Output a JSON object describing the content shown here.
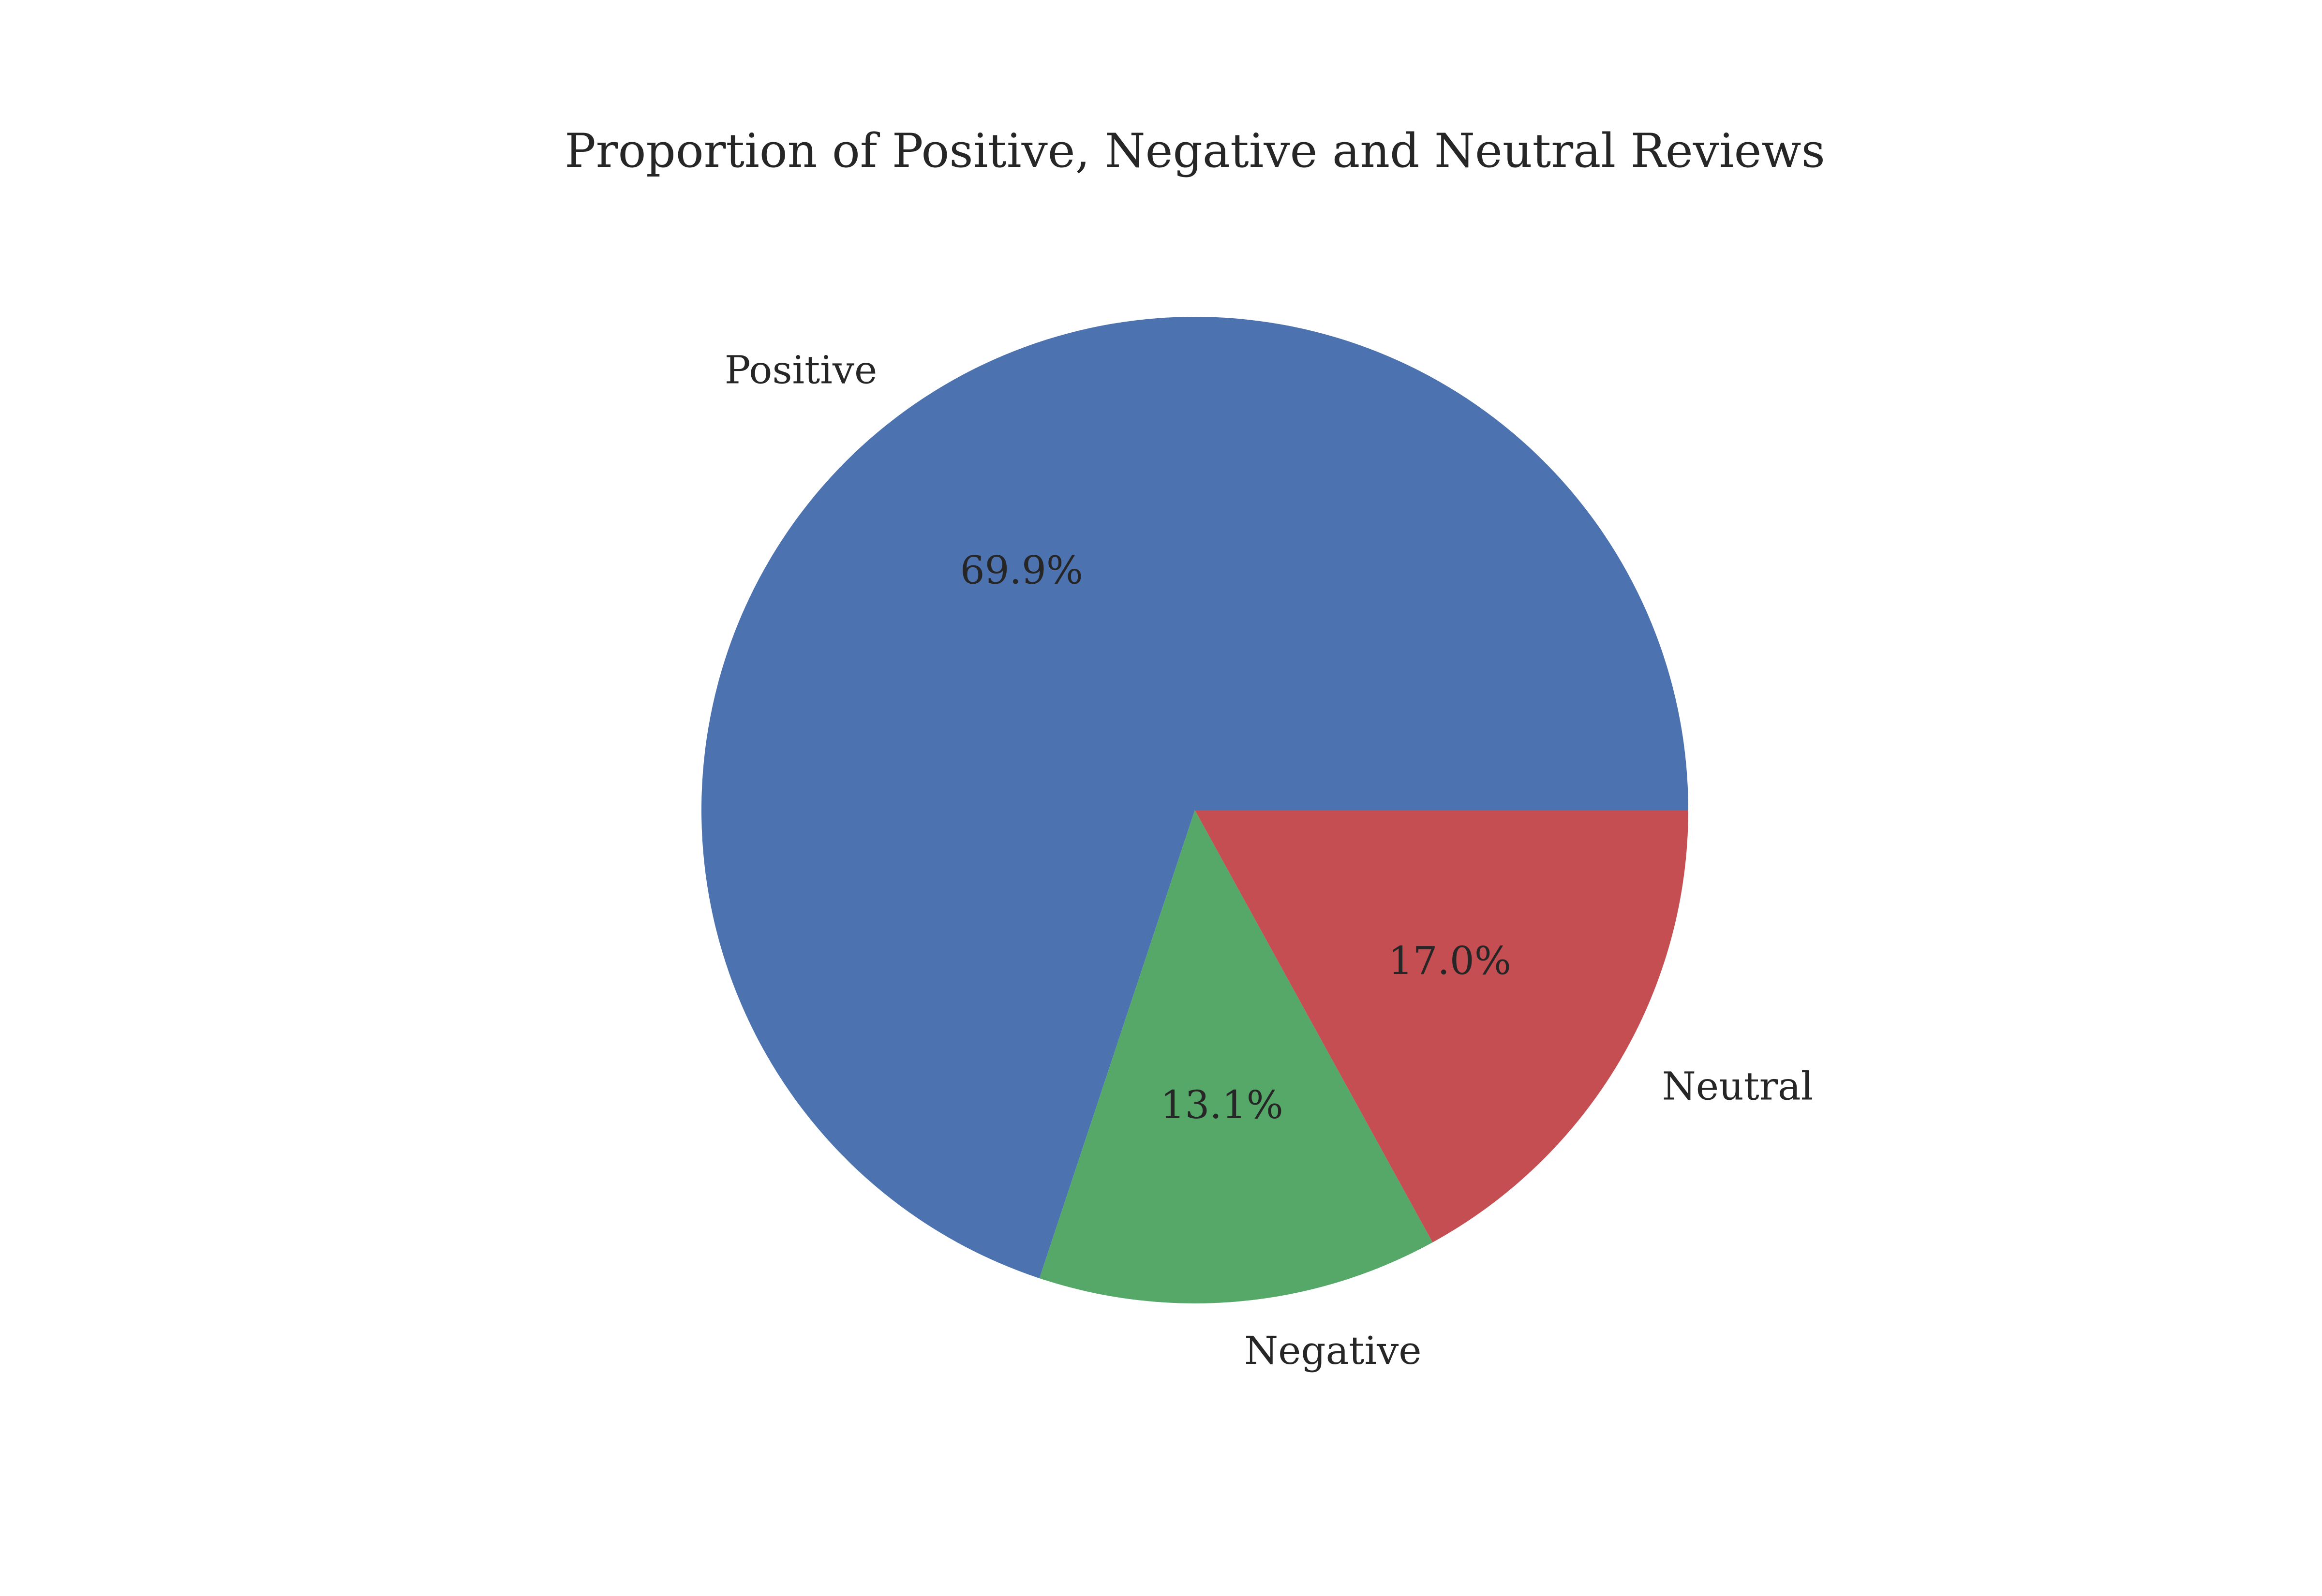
{
  "chart_data": {
    "type": "pie",
    "title": "Proportion of Positive, Negative and Neutral Reviews",
    "start_angle_deg": 0,
    "direction": "counterclockwise",
    "legend": "none",
    "slices": [
      {
        "label": "Positive",
        "value": 69.9,
        "pct_label": "69.9%",
        "color": "#4c72b0"
      },
      {
        "label": "Negative",
        "value": 13.1,
        "pct_label": "13.1%",
        "color": "#55a868"
      },
      {
        "label": "Neutral",
        "value": 17.0,
        "pct_label": "17.0%",
        "color": "#c44e52"
      }
    ]
  }
}
